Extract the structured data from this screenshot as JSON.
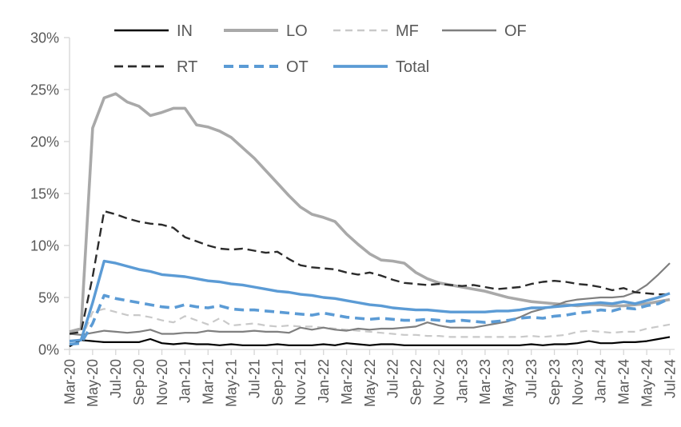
{
  "chart_data": {
    "type": "line",
    "title": "",
    "xlabel": "",
    "ylabel": "",
    "y_axis": {
      "min": 0,
      "max": 30,
      "step": 5,
      "unit": "%",
      "tick_labels": [
        "30%",
        "25%",
        "20%",
        "15%",
        "10%",
        "5%",
        "0%"
      ]
    },
    "x": [
      "Mar-20",
      "Apr-20",
      "May-20",
      "Jun-20",
      "Jul-20",
      "Aug-20",
      "Sep-20",
      "Oct-20",
      "Nov-20",
      "Dec-20",
      "Jan-21",
      "Feb-21",
      "Mar-21",
      "Apr-21",
      "May-21",
      "Jun-21",
      "Jul-21",
      "Aug-21",
      "Sep-21",
      "Oct-21",
      "Nov-21",
      "Dec-21",
      "Jan-22",
      "Feb-22",
      "Mar-22",
      "Apr-22",
      "May-22",
      "Jun-22",
      "Jul-22",
      "Aug-22",
      "Sep-22",
      "Oct-22",
      "Nov-22",
      "Dec-22",
      "Jan-23",
      "Feb-23",
      "Mar-23",
      "Apr-23",
      "May-23",
      "Jun-23",
      "Jul-23",
      "Aug-23",
      "Sep-23",
      "Oct-23",
      "Nov-23",
      "Dec-23",
      "Jan-24",
      "Feb-24",
      "Mar-24",
      "Apr-24",
      "May-24",
      "Jun-24",
      "Jul-24"
    ],
    "visible_tick_step": 2,
    "grid": false,
    "legend_position": "top",
    "legend_rows": [
      [
        "IN",
        "LO",
        "MF",
        "OF"
      ],
      [
        "RT",
        "OT",
        "Total"
      ]
    ],
    "series": [
      {
        "name": "IN",
        "color": "#000000",
        "style": "solid",
        "width": 2.2,
        "values": [
          0.3,
          0.9,
          0.8,
          0.7,
          0.7,
          0.7,
          0.7,
          1.0,
          0.6,
          0.5,
          0.6,
          0.5,
          0.5,
          0.4,
          0.5,
          0.4,
          0.4,
          0.4,
          0.5,
          0.4,
          0.4,
          0.4,
          0.5,
          0.4,
          0.6,
          0.5,
          0.4,
          0.5,
          0.5,
          0.4,
          0.4,
          0.4,
          0.4,
          0.4,
          0.4,
          0.4,
          0.4,
          0.4,
          0.4,
          0.4,
          0.5,
          0.4,
          0.5,
          0.5,
          0.6,
          0.8,
          0.6,
          0.6,
          0.7,
          0.7,
          0.8,
          1.0,
          1.2
        ]
      },
      {
        "name": "LO",
        "color": "#a9a9a9",
        "style": "solid",
        "width": 3.6,
        "values": [
          1.7,
          2.0,
          21.3,
          24.2,
          24.6,
          23.8,
          23.4,
          22.5,
          22.8,
          23.2,
          23.2,
          21.6,
          21.4,
          21.0,
          20.4,
          19.4,
          18.4,
          17.2,
          16.0,
          14.8,
          13.7,
          13.0,
          12.7,
          12.3,
          11.1,
          10.1,
          9.2,
          8.6,
          8.5,
          8.3,
          7.4,
          6.8,
          6.4,
          6.2,
          6.0,
          5.8,
          5.6,
          5.3,
          5.0,
          4.8,
          4.6,
          4.5,
          4.4,
          4.3,
          4.2,
          4.3,
          4.3,
          4.2,
          4.2,
          4.3,
          4.4,
          4.6,
          4.8
        ]
      },
      {
        "name": "MF",
        "color": "#c9c9c9",
        "style": "dashed",
        "width": 2.2,
        "dash": "9,6",
        "values": [
          0.8,
          0.9,
          3.6,
          3.9,
          3.6,
          3.3,
          3.3,
          3.1,
          2.8,
          2.6,
          3.2,
          2.8,
          2.4,
          3.0,
          2.3,
          2.4,
          2.5,
          2.3,
          2.2,
          2.3,
          2.2,
          2.2,
          2.1,
          2.0,
          1.9,
          1.8,
          1.7,
          1.6,
          1.5,
          1.4,
          1.4,
          1.3,
          1.3,
          1.2,
          1.2,
          1.2,
          1.2,
          1.2,
          1.2,
          1.2,
          1.3,
          1.2,
          1.3,
          1.4,
          1.7,
          1.8,
          1.7,
          1.6,
          1.7,
          1.7,
          2.0,
          2.2,
          2.4
        ]
      },
      {
        "name": "OF",
        "color": "#7f7f7f",
        "style": "solid",
        "width": 2.2,
        "values": [
          1.5,
          1.4,
          1.6,
          1.8,
          1.7,
          1.6,
          1.7,
          1.9,
          1.5,
          1.5,
          1.6,
          1.6,
          1.8,
          1.7,
          1.7,
          1.7,
          1.8,
          1.7,
          1.7,
          1.6,
          2.1,
          1.9,
          2.1,
          1.9,
          1.8,
          2.0,
          1.9,
          2.0,
          2.0,
          2.1,
          2.2,
          2.6,
          2.3,
          2.1,
          2.1,
          2.1,
          2.3,
          2.5,
          2.7,
          3.1,
          3.6,
          3.9,
          4.2,
          4.6,
          4.8,
          4.9,
          5.0,
          5.0,
          5.1,
          5.5,
          6.2,
          7.2,
          8.3
        ]
      },
      {
        "name": "RT",
        "color": "#2b2b2b",
        "style": "dashed",
        "width": 2.4,
        "dash": "11,6",
        "values": [
          1.5,
          1.7,
          7.0,
          13.3,
          13.0,
          12.6,
          12.3,
          12.1,
          12.0,
          11.7,
          10.8,
          10.4,
          10.0,
          9.7,
          9.6,
          9.7,
          9.5,
          9.3,
          9.4,
          8.7,
          8.1,
          7.9,
          7.8,
          7.7,
          7.4,
          7.2,
          7.4,
          7.1,
          6.7,
          6.4,
          6.3,
          6.2,
          6.3,
          6.2,
          6.1,
          6.2,
          6.0,
          5.8,
          5.9,
          6.0,
          6.3,
          6.5,
          6.6,
          6.5,
          6.3,
          6.2,
          6.0,
          5.7,
          5.9,
          5.5,
          5.4,
          5.3,
          5.3
        ]
      },
      {
        "name": "OT",
        "color": "#5b9bd5",
        "style": "dashed",
        "width": 3.6,
        "dash": "12,7",
        "values": [
          0.5,
          0.6,
          2.5,
          5.2,
          4.9,
          4.7,
          4.5,
          4.3,
          4.1,
          4.0,
          4.3,
          4.1,
          4.0,
          4.2,
          3.9,
          3.8,
          3.8,
          3.7,
          3.6,
          3.5,
          3.4,
          3.3,
          3.5,
          3.3,
          3.1,
          3.0,
          2.9,
          3.0,
          2.9,
          2.8,
          2.8,
          2.9,
          2.8,
          2.7,
          2.8,
          2.7,
          2.6,
          2.7,
          2.8,
          3.0,
          3.1,
          3.0,
          3.2,
          3.3,
          3.5,
          3.6,
          3.8,
          3.7,
          4.0,
          3.9,
          4.2,
          4.4,
          4.9
        ]
      },
      {
        "name": "Total",
        "color": "#5b9bd5",
        "style": "solid",
        "width": 3.4,
        "values": [
          0.8,
          0.9,
          4.5,
          8.5,
          8.3,
          8.0,
          7.7,
          7.5,
          7.2,
          7.1,
          7.0,
          6.8,
          6.6,
          6.5,
          6.3,
          6.2,
          6.0,
          5.8,
          5.6,
          5.5,
          5.3,
          5.2,
          5.0,
          4.9,
          4.7,
          4.5,
          4.3,
          4.2,
          4.0,
          3.9,
          3.8,
          3.8,
          3.7,
          3.6,
          3.6,
          3.6,
          3.6,
          3.7,
          3.7,
          3.8,
          4.0,
          4.0,
          4.1,
          4.2,
          4.3,
          4.4,
          4.5,
          4.4,
          4.6,
          4.4,
          4.7,
          5.0,
          5.4
        ]
      }
    ],
    "colors": {
      "axis_line": "#d6d6d6",
      "tick_mark": "#d6d6d6",
      "axis_text": "#595959",
      "legend_text": "#595959",
      "accent_blue": "#5b9bd5"
    }
  }
}
